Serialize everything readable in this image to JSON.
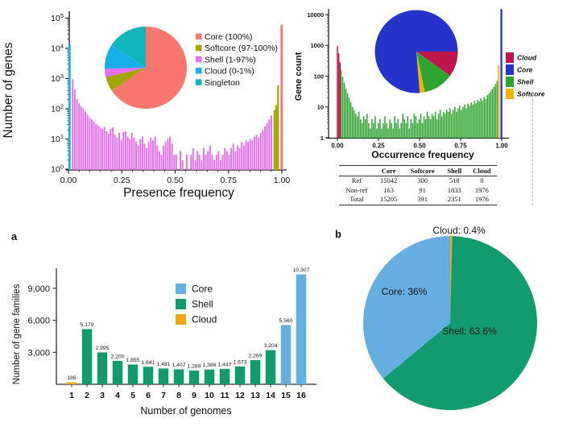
{
  "colors": {
    "core_salmon": "#F8766D",
    "softcore_olive": "#A3A500",
    "shell_magenta": "#E76BF3",
    "cloud_blue": "#18AEE8",
    "singleton_teal": "#0FB4BC",
    "cloud_crimson": "#C0144C",
    "core_blue": "#2533CB",
    "shell_green2": "#2FA32F",
    "softcore_gold": "#F0B400",
    "core_sky": "#64AEE0",
    "shell_green": "#129B6F",
    "cloud_orange": "#F2A50C",
    "axis": "#141414",
    "text": "#111111"
  },
  "chart_data": [
    {
      "id": "presence_histogram",
      "type": "bar",
      "xlabel": "Presence frequency",
      "ylabel": "Number of genes",
      "yscale": "log",
      "ylim": [
        1,
        100000
      ],
      "x_ticks": [
        "0.00",
        "0.25",
        "0.50",
        "0.75",
        "1.00"
      ],
      "y_tick_exponents": [
        "0",
        "1",
        "2",
        "3",
        "4",
        "5"
      ],
      "legend": [
        {
          "label": "Core (100%)",
          "color_key": "core_salmon"
        },
        {
          "label": "Softcore (97-100%)",
          "color_key": "softcore_olive"
        },
        {
          "label": "Shell (1-97%)",
          "color_key": "shell_magenta"
        },
        {
          "label": "Cloud (0-1%)",
          "color_key": "cloud_blue"
        },
        {
          "label": "Singleton",
          "color_key": "singleton_teal"
        }
      ],
      "series": [
        {
          "key": "cloud",
          "name": "Cloud (0-1%)",
          "color_key": "cloud_blue",
          "bars": [
            {
              "x": 0.005,
              "v": 13500
            }
          ]
        },
        {
          "key": "shell",
          "name": "Shell (1-97%)",
          "color_key": "shell_magenta",
          "x0": 0.02,
          "dx": 0.0099,
          "values": [
            950,
            430,
            210,
            150,
            120,
            100,
            82,
            65,
            52,
            45,
            38,
            32,
            28,
            24,
            22,
            25,
            18,
            15,
            22,
            24,
            14,
            11,
            16,
            9,
            17,
            18,
            12,
            10,
            16,
            11,
            8,
            6,
            10,
            12,
            7,
            5,
            8,
            11,
            9,
            12,
            6,
            4,
            3,
            6,
            8,
            10,
            12,
            7,
            3,
            3,
            0,
            4,
            2,
            0,
            3,
            1,
            3,
            5,
            2,
            4,
            3,
            2,
            5,
            3,
            4,
            6,
            3,
            2,
            3,
            4,
            2,
            3,
            5,
            4,
            3,
            5,
            7,
            4,
            6,
            5,
            8,
            6,
            9,
            8,
            10,
            9,
            12,
            14,
            11,
            16,
            20,
            26,
            34,
            44,
            60
          ]
        },
        {
          "key": "softcore",
          "name": "Softcore (97-100%)",
          "color_key": "softcore_olive",
          "x0": 0.965,
          "dx": 0.0085,
          "values": [
            90,
            130,
            600
          ]
        },
        {
          "key": "core",
          "name": "Core (100%)",
          "color_key": "core_salmon",
          "bars": [
            {
              "x": 0.999,
              "v": 60000
            }
          ]
        }
      ]
    },
    {
      "id": "presence_pie",
      "type": "pie",
      "start_deg": 0,
      "slices": [
        {
          "label": "Core (100%)",
          "frac": 0.655,
          "color_key": "core_salmon"
        },
        {
          "label": "Softcore (97-100%)",
          "frac": 0.058,
          "color_key": "softcore_olive"
        },
        {
          "label": "Shell (1-97%)",
          "frac": 0.033,
          "color_key": "shell_magenta"
        },
        {
          "label": "Cloud (0-1%)",
          "frac": 0.097,
          "color_key": "cloud_blue"
        },
        {
          "label": "Singleton",
          "frac": 0.157,
          "color_key": "singleton_teal"
        }
      ]
    },
    {
      "id": "occurrence_histogram",
      "type": "bar",
      "xlabel": "Occurrence frequency",
      "ylabel": "Gene count",
      "yscale": "log",
      "ylim": [
        1,
        10000
      ],
      "x_ticks": [
        "0.00",
        "0.25",
        "0.50",
        "0.75",
        "1.00"
      ],
      "y_ticks": [
        "1",
        "10",
        "100",
        "1000",
        "10000"
      ],
      "legend": [
        {
          "label": "Cloud",
          "color_key": "cloud_crimson"
        },
        {
          "label": "Core",
          "color_key": "core_blue"
        },
        {
          "label": "Shell",
          "color_key": "shell_green2"
        },
        {
          "label": "Softcore",
          "color_key": "softcore_gold"
        }
      ],
      "series": [
        {
          "key": "cloud",
          "name": "Cloud",
          "color_key": "cloud_crimson",
          "x0": 0.0,
          "dx": 0.008,
          "values": [
            950,
            550,
            280
          ]
        },
        {
          "key": "shell",
          "name": "Shell",
          "color_key": "shell_green2",
          "x0": 0.022,
          "dx": 0.0099,
          "values": [
            160,
            95,
            60,
            40,
            28,
            20,
            14,
            10,
            8,
            6,
            5,
            7,
            4,
            3,
            5,
            4,
            6,
            3,
            2,
            4,
            3,
            5,
            2,
            3,
            4,
            2,
            3,
            5,
            3,
            2,
            4,
            3,
            2,
            5,
            3,
            4,
            2,
            3,
            6,
            4,
            3,
            5,
            2,
            4,
            3,
            6,
            5,
            3,
            4,
            6,
            3,
            5,
            4,
            7,
            5,
            4,
            6,
            5,
            7,
            4,
            6,
            8,
            5,
            7,
            6,
            8,
            7,
            9,
            6,
            8,
            10,
            7,
            9,
            11,
            8,
            10,
            12,
            9,
            13,
            11,
            14,
            12,
            16,
            13,
            17,
            15,
            19,
            16,
            21,
            18,
            24,
            27,
            32,
            38,
            45,
            55,
            70
          ]
        },
        {
          "key": "softcore",
          "name": "Softcore",
          "color_key": "softcore_gold",
          "bars": [
            {
              "x": 0.982,
              "v": 230
            }
          ]
        },
        {
          "key": "core",
          "name": "Core",
          "color_key": "core_blue",
          "bars": [
            {
              "x": 0.998,
              "v": 15000
            }
          ]
        }
      ]
    },
    {
      "id": "occurrence_pie",
      "type": "pie",
      "start_deg": 90,
      "slices": [
        {
          "label": "Cloud",
          "frac": 0.099,
          "color_key": "cloud_crimson"
        },
        {
          "label": "Shell",
          "frac": 0.118,
          "color_key": "shell_green2"
        },
        {
          "label": "Softcore",
          "frac": 0.02,
          "color_key": "softcore_gold"
        },
        {
          "label": "Core",
          "frac": 0.763,
          "color_key": "core_blue"
        }
      ]
    },
    {
      "id": "gene_category_table",
      "type": "table",
      "headers": [
        "",
        "Core",
        "Softcore",
        "Shell",
        "Cloud"
      ],
      "rows": [
        [
          "Ref",
          "15042",
          "300",
          "518",
          "0"
        ],
        [
          "Non-ref",
          "163",
          "91",
          "1833",
          "1976"
        ],
        [
          "Total",
          "15205",
          "391",
          "2351",
          "1976"
        ]
      ]
    },
    {
      "id": "gene_families_bar",
      "type": "bar",
      "panel_label": "a",
      "xlabel": "Number of genomes",
      "ylabel": "Number of gene families",
      "categories": [
        "1",
        "2",
        "3",
        "4",
        "5",
        "6",
        "7",
        "8",
        "9",
        "10",
        "11",
        "12",
        "13",
        "14",
        "15",
        "16"
      ],
      "values": [
        186,
        5179,
        2995,
        2200,
        1855,
        1641,
        1481,
        1407,
        1289,
        1386,
        1447,
        1673,
        2269,
        3204,
        5560,
        10307
      ],
      "value_labels": [
        "186",
        "5,179",
        "2,995",
        "2,200",
        "1,855",
        "1,641",
        "1,481",
        "1,407",
        "1,289",
        "1,386",
        "1,447",
        "1,673",
        "2,269",
        "3,204",
        "5,560",
        "10,307"
      ],
      "bar_color_keys": [
        "cloud_orange",
        "shell_green",
        "shell_green",
        "shell_green",
        "shell_green",
        "shell_green",
        "shell_green",
        "shell_green",
        "shell_green",
        "shell_green",
        "shell_green",
        "shell_green",
        "shell_green",
        "shell_green",
        "core_sky",
        "core_sky"
      ],
      "y_ticks": [
        "3,000",
        "6,000",
        "9,000"
      ],
      "y_tick_values": [
        3000,
        6000,
        9000
      ],
      "legend": [
        {
          "label": "Core",
          "color_key": "core_sky"
        },
        {
          "label": "Shell",
          "color_key": "shell_green"
        },
        {
          "label": "Cloud",
          "color_key": "cloud_orange"
        }
      ]
    },
    {
      "id": "pangenome_pie",
      "type": "pie",
      "panel_label": "b",
      "start_deg": 0,
      "slices": [
        {
          "label": "Cloud: 0.4%",
          "frac": 0.004,
          "color_key": "cloud_orange"
        },
        {
          "label": "Shell: 63.6%",
          "frac": 0.636,
          "color_key": "shell_green"
        },
        {
          "label": "Core: 36%",
          "frac": 0.36,
          "color_key": "core_sky"
        }
      ]
    }
  ]
}
